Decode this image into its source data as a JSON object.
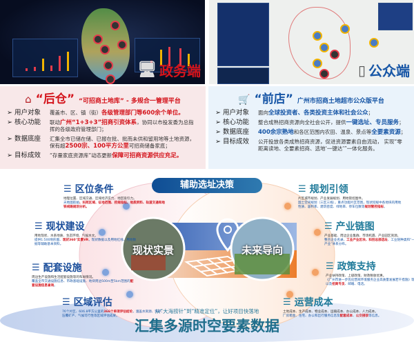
{
  "gov_screen": {
    "label": "政务端",
    "icon": "monitor-icon"
  },
  "public_screen": {
    "label": "公众端",
    "icon": "phone-icon"
  },
  "back_panel": {
    "title": "“后仓”",
    "subtitle": "“可招商土地库” - 多规合一管理平台",
    "icon": "warehouse-icon",
    "rows": [
      {
        "label": "用户对象",
        "segments": [
          {
            "t": "覆盖市、区、镇（街）",
            "h": ""
          },
          {
            "t": "各级管理部门等600余个单位。",
            "h": "r"
          }
        ]
      },
      {
        "label": "核心功能",
        "segments": [
          {
            "t": "联动",
            "h": ""
          },
          {
            "t": "广州“1+3+3”招商引资体系",
            "h": "r"
          },
          {
            "t": "，协同以市投发委为总指挥的各级政府管理部门；",
            "h": ""
          }
        ]
      },
      {
        "label": "数据底座",
        "segments": [
          {
            "t": "汇集全市已储在储、已报在批、批而未供和留用地等土地资源，保有超",
            "h": ""
          },
          {
            "t": "2500宗、100平方公里",
            "h": "r"
          },
          {
            "t": "可招商储备家底；",
            "h": ""
          }
        ]
      },
      {
        "label": "目标成效",
        "segments": [
          {
            "t": "“存量家底资源库”动态更新",
            "h": ""
          },
          {
            "t": "保障可招商资源供应充足。",
            "h": "r"
          }
        ]
      }
    ]
  },
  "front_panel": {
    "title": "“前店”",
    "subtitle": "广州市招商土地超市公众版平台",
    "icon": "shopping-cart-search-icon",
    "rows": [
      {
        "label": "用户对象",
        "segments": [
          {
            "t": "面向",
            "h": ""
          },
          {
            "t": "全球投资者、各类投资主体和社会公众",
            "h": "b"
          },
          {
            "t": "；",
            "h": ""
          }
        ]
      },
      {
        "label": "核心功能",
        "segments": [
          {
            "t": "整合成熟招商资源向全社会公开，提供",
            "h": ""
          },
          {
            "t": "一键选址、专员服务",
            "h": "b"
          },
          {
            "t": "；",
            "h": ""
          }
        ]
      },
      {
        "label": "数据底座",
        "segments": [
          {
            "t": "400余宗熟地",
            "h": "b"
          },
          {
            "t": "和各区范围内农田、温泉、景点等",
            "h": ""
          },
          {
            "t": "全要素资源",
            "h": "b"
          },
          {
            "t": "；",
            "h": ""
          }
        ]
      },
      {
        "label": "目标成效",
        "segments": [
          {
            "t": "公开投放各类成熟招商资源，促进资源要素自由流动， 实现“零距离读地、全要素招商、选地‘一键达’”一体化服务。",
            "h": ""
          }
        ]
      }
    ]
  },
  "center": {
    "banner": "辅助选址决策",
    "left_photo": "现状实景",
    "right_photo": "未来导向",
    "tagline": "从“大海捞针”到“精准定位”，让好项目快落地",
    "headline": "汇集多源时空要素数据",
    "icon": "location-user-pin-icon"
  },
  "left_items": [
    {
      "title": "区位条件",
      "d1": "地理位置、区域交通、区域经济实力、地区吸引力。",
      "d2a": "天地图航拍",
      "d2b": "、科苑区域、征地范围、控规指标、地质资料、轨道交通和地铁线路规划分析。"
    },
    {
      "title": "现状建设",
      "d1": "用地现状、水系地质、生态环境、气候水文。",
      "d2a": "提供1:500地形图、",
      "d2b": "现状360°实景VR",
      "d2c": "，现状数据以及用地红线、用地数据等辅助基本资料。"
    },
    {
      "title": "配套设施",
      "d1": "周边生产设施和生活配套设施等的布局情况。",
      "d2a": "覆盖全市交通设施信息、市政基础设施、地块周边500m至5km范围的",
      "d2b": "配套设施信息查询",
      "d2c": "。"
    },
    {
      "title": "区域评估",
      "d1": "",
      "d2a": "76个片区、606.8平方公里的",
      "d2b": "366个单项评估结论",
      "d2c": "，涵盖水资源、环评、压覆矿产、气候可行性等区域评估成果。"
    }
  ],
  "right_items": [
    {
      "title": "规划引领",
      "d1": "片区城市规划、产业发展规划、用地管控图件。",
      "d2a": "国土空间规划（三区三线），重点功能片区范围，现状控规中各地块的用地性质、容积率、建筑密度、绿地率、停车位数等",
      "d2b": "规划管控指标",
      "d2c": "。"
    },
    {
      "title": "产业链图",
      "d1": "产业基础、周边企业集群、市场机遇、产业园区资源。",
      "d2a": "整合企业名录、",
      "d2b": "工业产业区块、科创总部选址",
      "d2c": "、工业链种类和“一、二、三产业”体系分布。"
    },
    {
      "title": "政策支持",
      "d1": "产业扶持政策、上级政策、财政税收优惠。",
      "d2a": "《广州市进一步优化营商环境服务企业高质量发展若干措施》等系列政策以及",
      "d2b": "招商专员",
      "d2c": "、邮箱、电话。"
    },
    {
      "title": "运营成本",
      "d1": "土地成本、生产成本、物业成本、运输成本、办公成本、人力成本。",
      "d2a": "厂房租金、住宅、办公和出行服务信息及",
      "d2b": "配套成本",
      "d2c": "、",
      "d2d": "公交接驳",
      "d2e": "等信息。"
    }
  ],
  "colors": {
    "red": "#d4141c",
    "blue": "#1756a6",
    "teal": "#1f7a9a",
    "orange": "#ef8a3c"
  }
}
